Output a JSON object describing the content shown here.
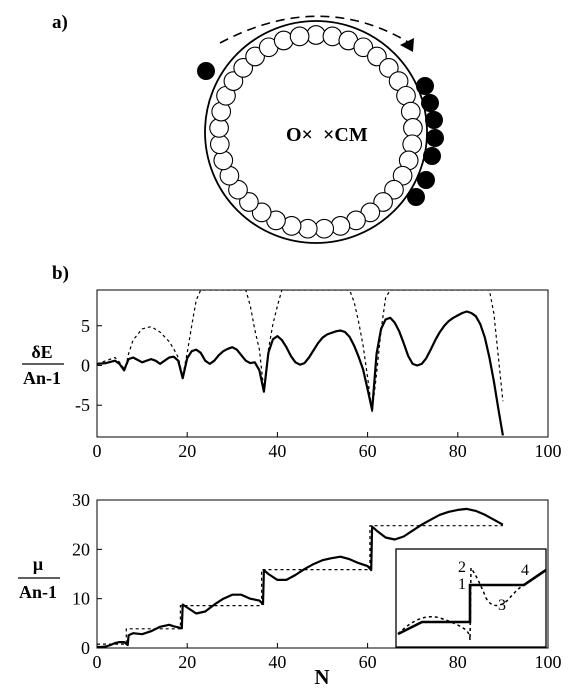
{
  "panel_a": {
    "label": "a)",
    "center_text_left": "O×",
    "center_text_right": "×CM",
    "open_disk_count": 37,
    "filled_disk_count": 8
  },
  "panel_b": {
    "label": "b)"
  },
  "chart_data": [
    {
      "type": "line",
      "ylabel_numerator": "δE",
      "ylabel_denominator": "An-1",
      "xlim": [
        0,
        100
      ],
      "ylim": [
        -9,
        9.5
      ],
      "xticks": [
        "0",
        "20",
        "40",
        "60",
        "80",
        "100"
      ],
      "yticks": [
        "5",
        "0",
        "-5"
      ],
      "ytick_values": [
        5,
        0,
        -5
      ],
      "series": [
        {
          "style": "solid",
          "x": [
            0,
            2,
            4,
            5,
            6,
            6.5,
            7,
            8,
            9,
            10,
            12,
            13,
            14,
            15,
            16,
            17,
            18,
            19,
            20,
            21,
            22,
            23,
            24,
            25,
            26,
            27,
            28,
            29,
            30,
            31,
            32,
            33,
            34,
            35,
            36,
            37,
            38,
            39,
            40,
            41,
            42,
            43,
            44,
            45,
            46,
            47,
            48,
            49,
            50,
            51,
            52,
            53,
            54,
            55,
            56,
            57,
            58,
            59,
            60,
            61,
            62,
            63,
            64,
            65,
            66,
            67,
            68,
            69,
            70,
            71,
            72,
            73,
            74,
            75,
            76,
            77,
            78,
            79,
            80,
            81,
            82,
            83,
            84,
            85,
            86,
            87,
            88,
            89,
            90
          ],
          "y": [
            0.2,
            0.3,
            0.6,
            0.2,
            -0.6,
            0.1,
            0.8,
            1.0,
            0.7,
            0.4,
            0.8,
            0.6,
            0.2,
            0.6,
            1.0,
            1.1,
            0.6,
            -1.6,
            0.9,
            1.8,
            2.0,
            1.6,
            0.6,
            0.2,
            0.6,
            1.3,
            1.8,
            2.1,
            2.3,
            2.0,
            1.3,
            0.6,
            0.3,
            0.4,
            -0.6,
            -3.3,
            1.6,
            3.3,
            3.7,
            3.2,
            2.3,
            1.2,
            0.4,
            0.1,
            0.3,
            1.0,
            1.9,
            2.8,
            3.5,
            3.9,
            4.1,
            4.3,
            4.4,
            4.2,
            3.6,
            2.5,
            1.1,
            -0.5,
            -3.0,
            -5.6,
            1.5,
            4.6,
            5.8,
            6.0,
            5.4,
            4.3,
            2.8,
            1.2,
            0.2,
            0.0,
            0.2,
            0.9,
            2.0,
            3.2,
            4.2,
            5.0,
            5.6,
            6.0,
            6.3,
            6.6,
            6.8,
            6.6,
            6.2,
            5.2,
            3.5,
            1.0,
            -2.0,
            -5.5,
            -8.8
          ]
        },
        {
          "style": "dashed",
          "x": [
            0,
            2,
            4,
            5,
            6,
            6.5,
            7,
            8,
            10,
            12,
            14,
            16,
            17,
            18,
            19,
            20,
            21,
            22,
            23,
            24,
            25,
            26,
            27,
            28,
            29,
            30,
            31,
            32,
            33,
            34,
            35,
            36,
            37,
            38,
            39,
            40,
            41,
            42,
            43,
            44,
            45,
            46,
            47,
            48,
            49,
            50,
            51,
            52,
            53,
            54,
            55,
            56,
            57,
            58,
            59,
            60,
            61,
            62,
            63,
            64,
            65,
            66,
            67,
            68,
            69,
            70,
            71,
            72,
            73,
            74,
            75,
            76,
            77,
            78,
            79,
            80,
            81,
            82,
            83,
            84,
            85,
            86,
            87,
            88,
            89,
            90
          ],
          "y": [
            0.2,
            0.6,
            1.0,
            0.4,
            -0.4,
            0.1,
            1.5,
            3.2,
            4.6,
            4.9,
            4.2,
            3.0,
            2.1,
            1.0,
            -1.4,
            1.6,
            5.0,
            8.2,
            9.5,
            9.5,
            9.5,
            9.5,
            9.5,
            9.5,
            9.5,
            9.5,
            9.5,
            9.5,
            9.5,
            7.5,
            4.5,
            2.0,
            -3.2,
            2.0,
            5.2,
            7.5,
            9.5,
            9.5,
            9.5,
            9.5,
            9.5,
            9.5,
            9.5,
            9.5,
            9.5,
            9.5,
            9.5,
            9.5,
            9.5,
            9.5,
            9.5,
            9.5,
            8.0,
            5.5,
            2.5,
            -1.5,
            -5.8,
            -1.0,
            4.5,
            8.5,
            9.5,
            9.5,
            9.5,
            9.5,
            9.5,
            9.5,
            9.5,
            9.5,
            9.5,
            9.5,
            9.5,
            9.5,
            9.5,
            9.5,
            9.5,
            9.5,
            9.5,
            9.5,
            9.5,
            9.5,
            9.5,
            9.5,
            9.5,
            6.5,
            1.0,
            -4.5
          ]
        }
      ]
    },
    {
      "type": "line",
      "ylabel_numerator": "μ",
      "ylabel_denominator": "An-1",
      "xlabel": "N",
      "xlim": [
        0,
        100
      ],
      "ylim": [
        0,
        30
      ],
      "xticks": [
        "0",
        "20",
        "40",
        "60",
        "80",
        "100"
      ],
      "yticks": [
        "0",
        "10",
        "20",
        "30"
      ],
      "ytick_values": [
        0,
        10,
        20,
        30
      ],
      "series": [
        {
          "style": "solid",
          "x": [
            0,
            1,
            2,
            3,
            4,
            5,
            6,
            6.8,
            7,
            8,
            10,
            12,
            14,
            16,
            17,
            18,
            18.8,
            19,
            20,
            22,
            24,
            26,
            28,
            30,
            32,
            34,
            36,
            36.8,
            37,
            38,
            40,
            42,
            44,
            46,
            48,
            50,
            52,
            54,
            56,
            58,
            60,
            60.8,
            61,
            62,
            64,
            66,
            68,
            70,
            72,
            74,
            76,
            78,
            80,
            82,
            84,
            86,
            88,
            90
          ],
          "y": [
            0.2,
            0.2,
            0.3,
            0.6,
            1.0,
            1.2,
            1.2,
            0.6,
            2.6,
            3.0,
            2.8,
            3.4,
            4.3,
            4.7,
            4.4,
            4.2,
            4.0,
            8.8,
            8.2,
            7.0,
            7.4,
            8.8,
            10.0,
            10.8,
            10.8,
            10.0,
            9.6,
            8.9,
            15.8,
            15.0,
            13.8,
            13.8,
            14.8,
            16.0,
            17.0,
            17.8,
            18.2,
            18.5,
            18.0,
            17.2,
            16.6,
            15.8,
            24.6,
            23.8,
            22.4,
            22.0,
            22.6,
            23.8,
            25.0,
            26.0,
            27.0,
            27.6,
            28.0,
            28.2,
            27.8,
            27.0,
            26.0,
            25.0
          ]
        },
        {
          "style": "dashed",
          "x": [
            0,
            1,
            1,
            6.5,
            6.5,
            18.5,
            18.5,
            36.5,
            36.5,
            60.5,
            60.5,
            90
          ],
          "y": [
            0.8,
            0.8,
            0.8,
            0.8,
            3.9,
            3.9,
            8.6,
            8.6,
            15.9,
            15.9,
            24.8,
            24.8
          ]
        }
      ],
      "inset": {
        "annotations": [
          "1",
          "2",
          "3",
          "4"
        ]
      }
    }
  ]
}
